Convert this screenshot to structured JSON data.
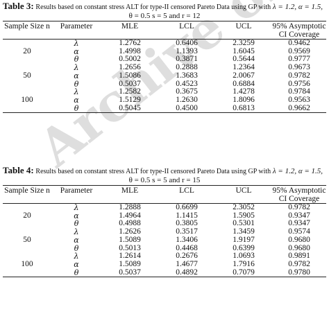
{
  "watermark": "Archive of SID",
  "tables": [
    {
      "label": "Table 3:",
      "title_small": "Results based on constant stress ALT for type-II censored Pareto Data using GP with",
      "title_params": "λ = 1.2, α = 1.5,",
      "line2": "θ = 0.5  s = 5  and r = 12",
      "headers": {
        "sample_size": "Sample Size n",
        "parameter": "Parameter",
        "mle": "MLE",
        "lcl": "LCL",
        "ucl": "UCL",
        "coverage": "95% Asymptotic CI Coverage"
      },
      "groups": [
        {
          "n": "20",
          "rows": [
            {
              "param": "λ",
              "mle": "1.2762",
              "lcl": "0.6406",
              "ucl": "2.3259",
              "cov": "0.9462"
            },
            {
              "param": "α",
              "mle": "1.4998",
              "lcl": "1.1393",
              "ucl": "1.6045",
              "cov": "0.9569"
            },
            {
              "param": "θ",
              "mle": "0.5002",
              "lcl": "0.3871",
              "ucl": "0.5644",
              "cov": "0.9777"
            }
          ]
        },
        {
          "n": "50",
          "rows": [
            {
              "param": "λ",
              "mle": "1.2656",
              "lcl": "0.2888",
              "ucl": "1.2364",
              "cov": "0.9673"
            },
            {
              "param": "α",
              "mle": "1.5086",
              "lcl": "1.3683",
              "ucl": "2.0067",
              "cov": "0.9782"
            },
            {
              "param": "θ",
              "mle": "0.5037",
              "lcl": "0.4523",
              "ucl": "0.6884",
              "cov": "0.9756"
            }
          ]
        },
        {
          "n": "100",
          "rows": [
            {
              "param": "λ",
              "mle": "1.2582",
              "lcl": "0.3675",
              "ucl": "1.4278",
              "cov": "0.9784"
            },
            {
              "param": "α",
              "mle": "1.5129",
              "lcl": "1.2630",
              "ucl": "1.8096",
              "cov": "0.9563"
            },
            {
              "param": "θ",
              "mle": "0.5045",
              "lcl": "0.4500",
              "ucl": "0.6813",
              "cov": "0.9662"
            }
          ]
        }
      ]
    },
    {
      "label": "Table 4:",
      "title_small": "Results based on constant stress ALT for type-II censored Pareto Data using GP with",
      "title_params": "λ = 1.2, α = 1.5,",
      "line2": "θ = 0.5  s = 5  and r = 15",
      "headers": {
        "sample_size": "Sample Size n",
        "parameter": "Parameter",
        "mle": "MLE",
        "lcl": "LCL",
        "ucl": "UCL",
        "coverage": "95% Asymptotic CI Coverage"
      },
      "groups": [
        {
          "n": "20",
          "rows": [
            {
              "param": "λ",
              "mle": "1.2888",
              "lcl": "0.6699",
              "ucl": "2.3052",
              "cov": "0.9782"
            },
            {
              "param": "α",
              "mle": "1.4964",
              "lcl": "1.1415",
              "ucl": "1.5905",
              "cov": "0.9347"
            },
            {
              "param": "θ",
              "mle": "0.4988",
              "lcl": "0.3805",
              "ucl": "0.5301",
              "cov": "0.9347"
            }
          ]
        },
        {
          "n": "50",
          "rows": [
            {
              "param": "λ",
              "mle": "1.2626",
              "lcl": "0.3517",
              "ucl": "1.3459",
              "cov": "0.9574"
            },
            {
              "param": "α",
              "mle": "1.5089",
              "lcl": "1.3406",
              "ucl": "1.9197",
              "cov": "0.9680"
            },
            {
              "param": "θ",
              "mle": "0.5013",
              "lcl": "0.4468",
              "ucl": "0.6399",
              "cov": "0.9680"
            }
          ]
        },
        {
          "n": "100",
          "rows": [
            {
              "param": "λ",
              "mle": "1.2614",
              "lcl": "0.2676",
              "ucl": "1.0693",
              "cov": "0.9891"
            },
            {
              "param": "α",
              "mle": "1.5089",
              "lcl": "1.4677",
              "ucl": "1.7916",
              "cov": "0.9782"
            },
            {
              "param": "θ",
              "mle": "0.5037",
              "lcl": "0.4892",
              "ucl": "0.7079",
              "cov": "0.9780"
            }
          ]
        }
      ]
    }
  ]
}
